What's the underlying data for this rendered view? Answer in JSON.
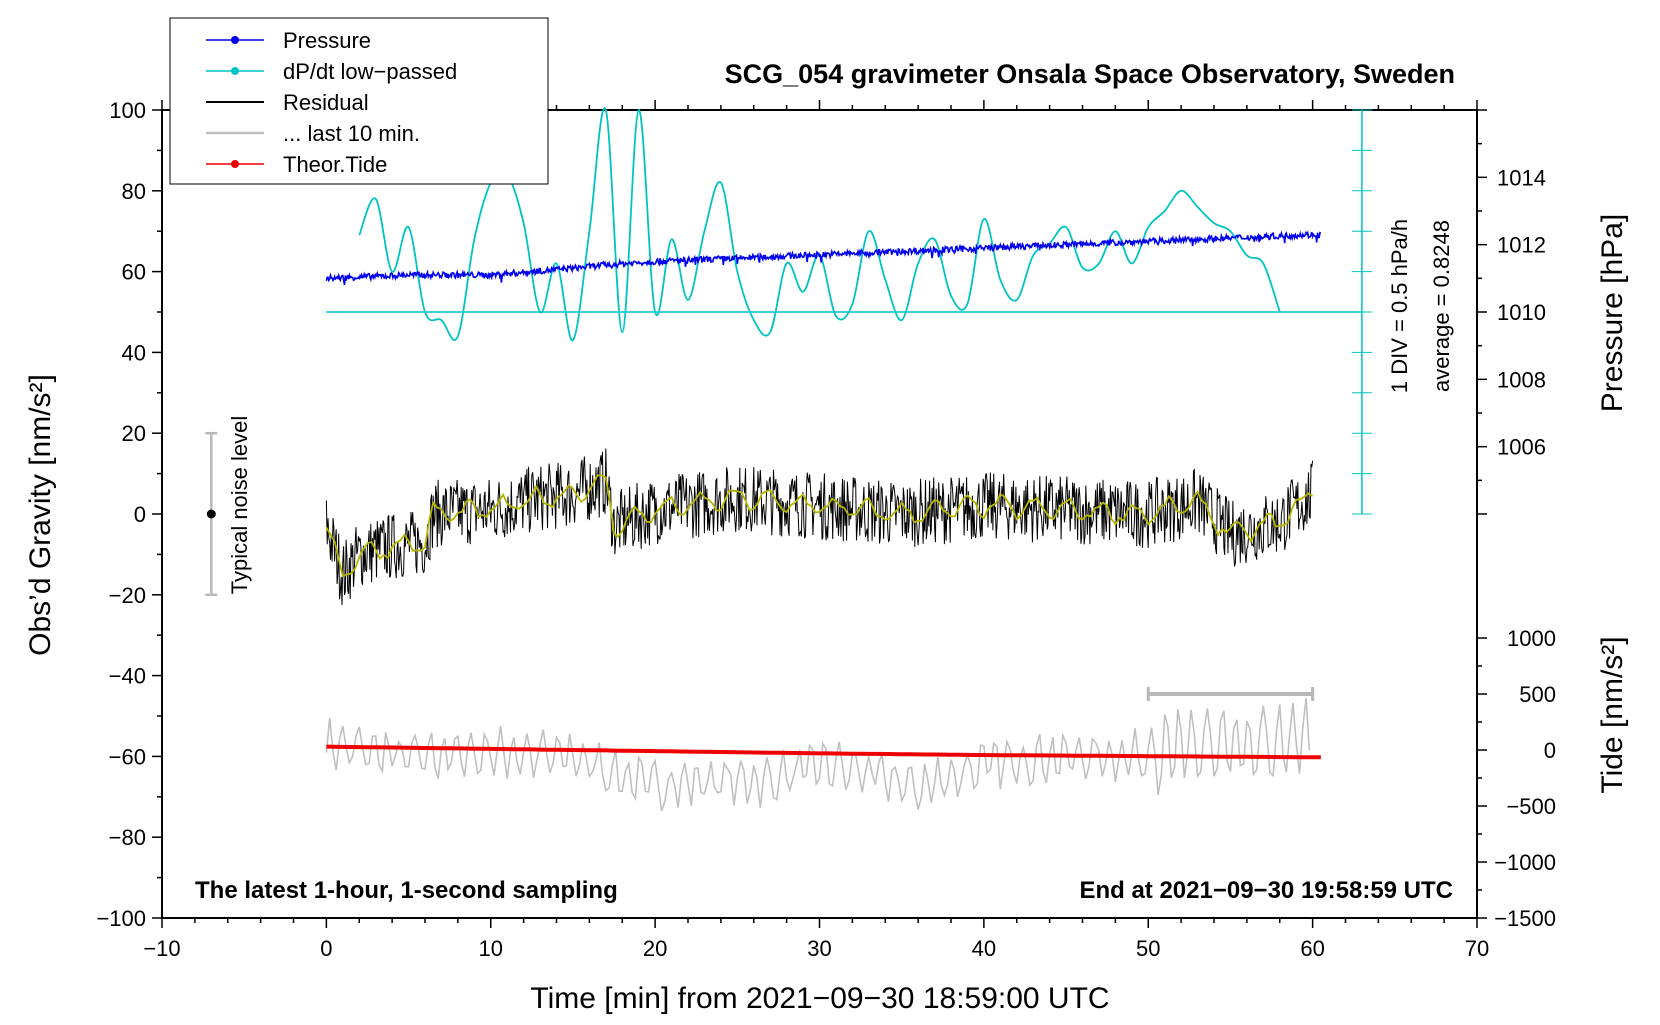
{
  "chart_data": {
    "type": "line",
    "title": "SCG_054 gravimeter Onsala Space Observatory, Sweden",
    "xlabel": "Time [min] from 2021−09−30 18:59:00 UTC",
    "ylabel_left": "Obs’d Gravity [nm/s²]",
    "ylabel_right_upper": "Pressure [hPa]",
    "ylabel_right_lower": "Tide [nm/s²]",
    "xlim": [
      -10,
      70
    ],
    "ylim": [
      -100,
      100
    ],
    "pressure_lim": [
      1004,
      1016
    ],
    "tide_lim": [
      -1500,
      1500
    ],
    "x_ticks": [
      "−10",
      "0",
      "10",
      "20",
      "30",
      "40",
      "50",
      "60",
      "70"
    ],
    "y_ticks": [
      "−100",
      "−80",
      "−60",
      "−40",
      "−20",
      "0",
      "20",
      "40",
      "60",
      "80",
      "100"
    ],
    "pressure_ticks": [
      "1006",
      "1008",
      "1010",
      "1012",
      "1014"
    ],
    "tide_ticks": [
      "−1500",
      "−1000",
      "−500",
      "0",
      "500",
      "1000"
    ],
    "legend": [
      "Pressure",
      "dP/dt low−passed",
      "Residual",
      "... last 10 min.",
      "Theor.Tide"
    ],
    "legend_placement": "top-left",
    "left_note": "The latest 1-hour, 1-second sampling",
    "right_note": "End at 2021−09−30 19:58:59 UTC",
    "noise_label": "Typical noise level",
    "noise_bar": {
      "x": -7,
      "center": 0,
      "half_range": 20
    },
    "dpdt_scale": "1 DIV = 0.5 hPa/h",
    "dpdt_average": "average = 0.8248",
    "last10_bar": {
      "x_start": 50,
      "x_end": 60,
      "y_tide": 500
    },
    "series": [
      {
        "name": "Pressure",
        "color": "#0000ee",
        "unit": "hPa",
        "x": [
          0,
          5,
          10,
          15,
          17,
          20,
          25,
          30,
          35,
          40,
          45,
          50,
          55,
          60
        ],
        "values": [
          1011.0,
          1011.1,
          1011.1,
          1011.3,
          1011.4,
          1011.5,
          1011.6,
          1011.7,
          1011.8,
          1011.9,
          1012.0,
          1012.1,
          1012.2,
          1012.3
        ]
      },
      {
        "name": "dP/dt low−passed",
        "color": "#00c4c4",
        "unit": "gravity-axis units",
        "x": [
          2,
          3,
          4,
          5,
          6,
          7,
          8,
          9,
          10,
          11,
          12,
          13,
          14,
          15,
          16,
          17,
          18,
          19,
          20,
          21,
          22,
          23,
          24,
          25,
          26,
          27,
          28,
          29,
          30,
          31,
          32,
          33,
          34,
          35,
          36,
          37,
          38,
          39,
          40,
          41,
          42,
          43,
          44,
          45,
          46,
          47,
          48,
          49,
          50,
          51,
          52,
          53,
          54,
          55,
          56,
          57,
          58
        ],
        "values": [
          69,
          78,
          60,
          71,
          50,
          48,
          44,
          68,
          82,
          84,
          72,
          50,
          62,
          43,
          70,
          100,
          45,
          100,
          50,
          68,
          53,
          70,
          82,
          60,
          48,
          45,
          62,
          55,
          64,
          49,
          52,
          70,
          58,
          48,
          62,
          68,
          54,
          52,
          73,
          58,
          53,
          64,
          67,
          71,
          61,
          62,
          70,
          62,
          71,
          75,
          80,
          76,
          72,
          70,
          64,
          62,
          50
        ]
      },
      {
        "name": "Residual",
        "color": "#000000",
        "unit": "nm/s²",
        "x": [
          0,
          1,
          2,
          4,
          6,
          6.5,
          10,
          13,
          15,
          17,
          17.5,
          20,
          25,
          30,
          35,
          40,
          45,
          50,
          53,
          55,
          58,
          60
        ],
        "values": [
          -3,
          -15,
          -10,
          -8,
          -7,
          0,
          1,
          4,
          5,
          8,
          -3,
          1,
          4,
          2,
          0,
          2,
          1,
          0,
          3,
          -5,
          -2,
          5
        ]
      },
      {
        "name": "... last 10 min.",
        "color": "#c0c0c0",
        "unit": "nm/s²",
        "x": [
          0,
          5,
          10,
          15,
          18,
          20,
          24,
          27,
          30,
          33,
          36,
          40,
          45,
          50,
          53,
          55,
          58,
          60
        ],
        "values": [
          -57,
          -60,
          -59,
          -60,
          -65,
          -67,
          -66,
          -66,
          -62,
          -64,
          -68,
          -62,
          -60,
          -60,
          -57,
          -58,
          -57,
          -55
        ]
      },
      {
        "name": "Theor.Tide",
        "color": "#ee0000",
        "unit": "nm/s²",
        "x": [
          0,
          10,
          20,
          30,
          40,
          50,
          60
        ],
        "values": [
          30,
          10,
          -10,
          -30,
          -45,
          -55,
          -65
        ]
      }
    ]
  }
}
